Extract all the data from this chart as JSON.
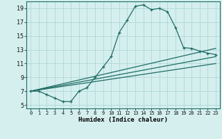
{
  "xlabel": "Humidex (Indice chaleur)",
  "bg_color": "#d4efee",
  "line_color": "#1f6b64",
  "grid_color": "#b0d8d5",
  "xlim": [
    -0.5,
    23.5
  ],
  "ylim": [
    4.5,
    20.0
  ],
  "yticks": [
    5,
    7,
    9,
    11,
    13,
    15,
    17,
    19
  ],
  "xticks": [
    0,
    1,
    2,
    3,
    4,
    5,
    6,
    7,
    8,
    9,
    10,
    11,
    12,
    13,
    14,
    15,
    16,
    17,
    18,
    19,
    20,
    21,
    22,
    23
  ],
  "main_x": [
    0,
    1,
    2,
    3,
    4,
    5,
    6,
    7,
    8,
    9,
    10,
    11,
    12,
    13,
    14,
    15,
    16,
    17,
    18,
    19,
    20,
    21,
    22,
    23
  ],
  "main_y": [
    7.0,
    7.0,
    6.5,
    6.0,
    5.5,
    5.5,
    7.0,
    7.5,
    9.0,
    10.5,
    12.0,
    15.5,
    17.3,
    19.3,
    19.5,
    18.8,
    19.0,
    18.5,
    16.2,
    13.3,
    13.2,
    12.8,
    12.5,
    12.3
  ],
  "line1_x": [
    0,
    23
  ],
  "line1_y": [
    7.0,
    13.2
  ],
  "line2_x": [
    0,
    23
  ],
  "line2_y": [
    7.0,
    12.0
  ],
  "line3_x": [
    0,
    23
  ],
  "line3_y": [
    7.0,
    11.0
  ]
}
